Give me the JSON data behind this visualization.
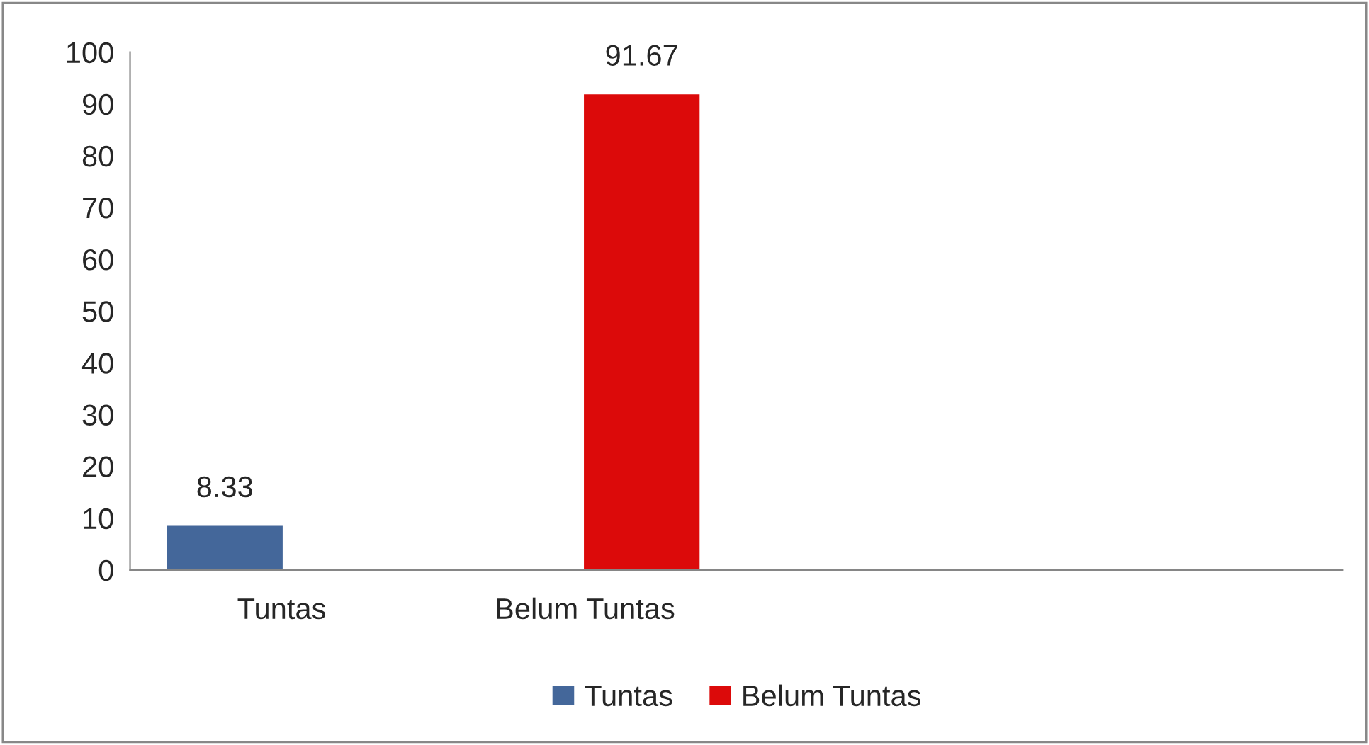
{
  "chart_data": {
    "type": "bar",
    "categories": [
      "Tuntas",
      "Belum Tuntas",
      null,
      null
    ],
    "series": [
      {
        "name": "Tuntas",
        "color": "#44679a",
        "values": [
          8.33,
          null,
          null,
          null
        ]
      },
      {
        "name": "Belum Tuntas",
        "color": "#dc0a0a",
        "values": [
          null,
          91.67,
          null,
          null
        ]
      }
    ],
    "ylim": [
      0,
      100
    ],
    "yticks": [
      0,
      10,
      20,
      30,
      40,
      50,
      60,
      70,
      80,
      90,
      100
    ],
    "data_labels": true,
    "legend": "bottom",
    "grid": false
  }
}
